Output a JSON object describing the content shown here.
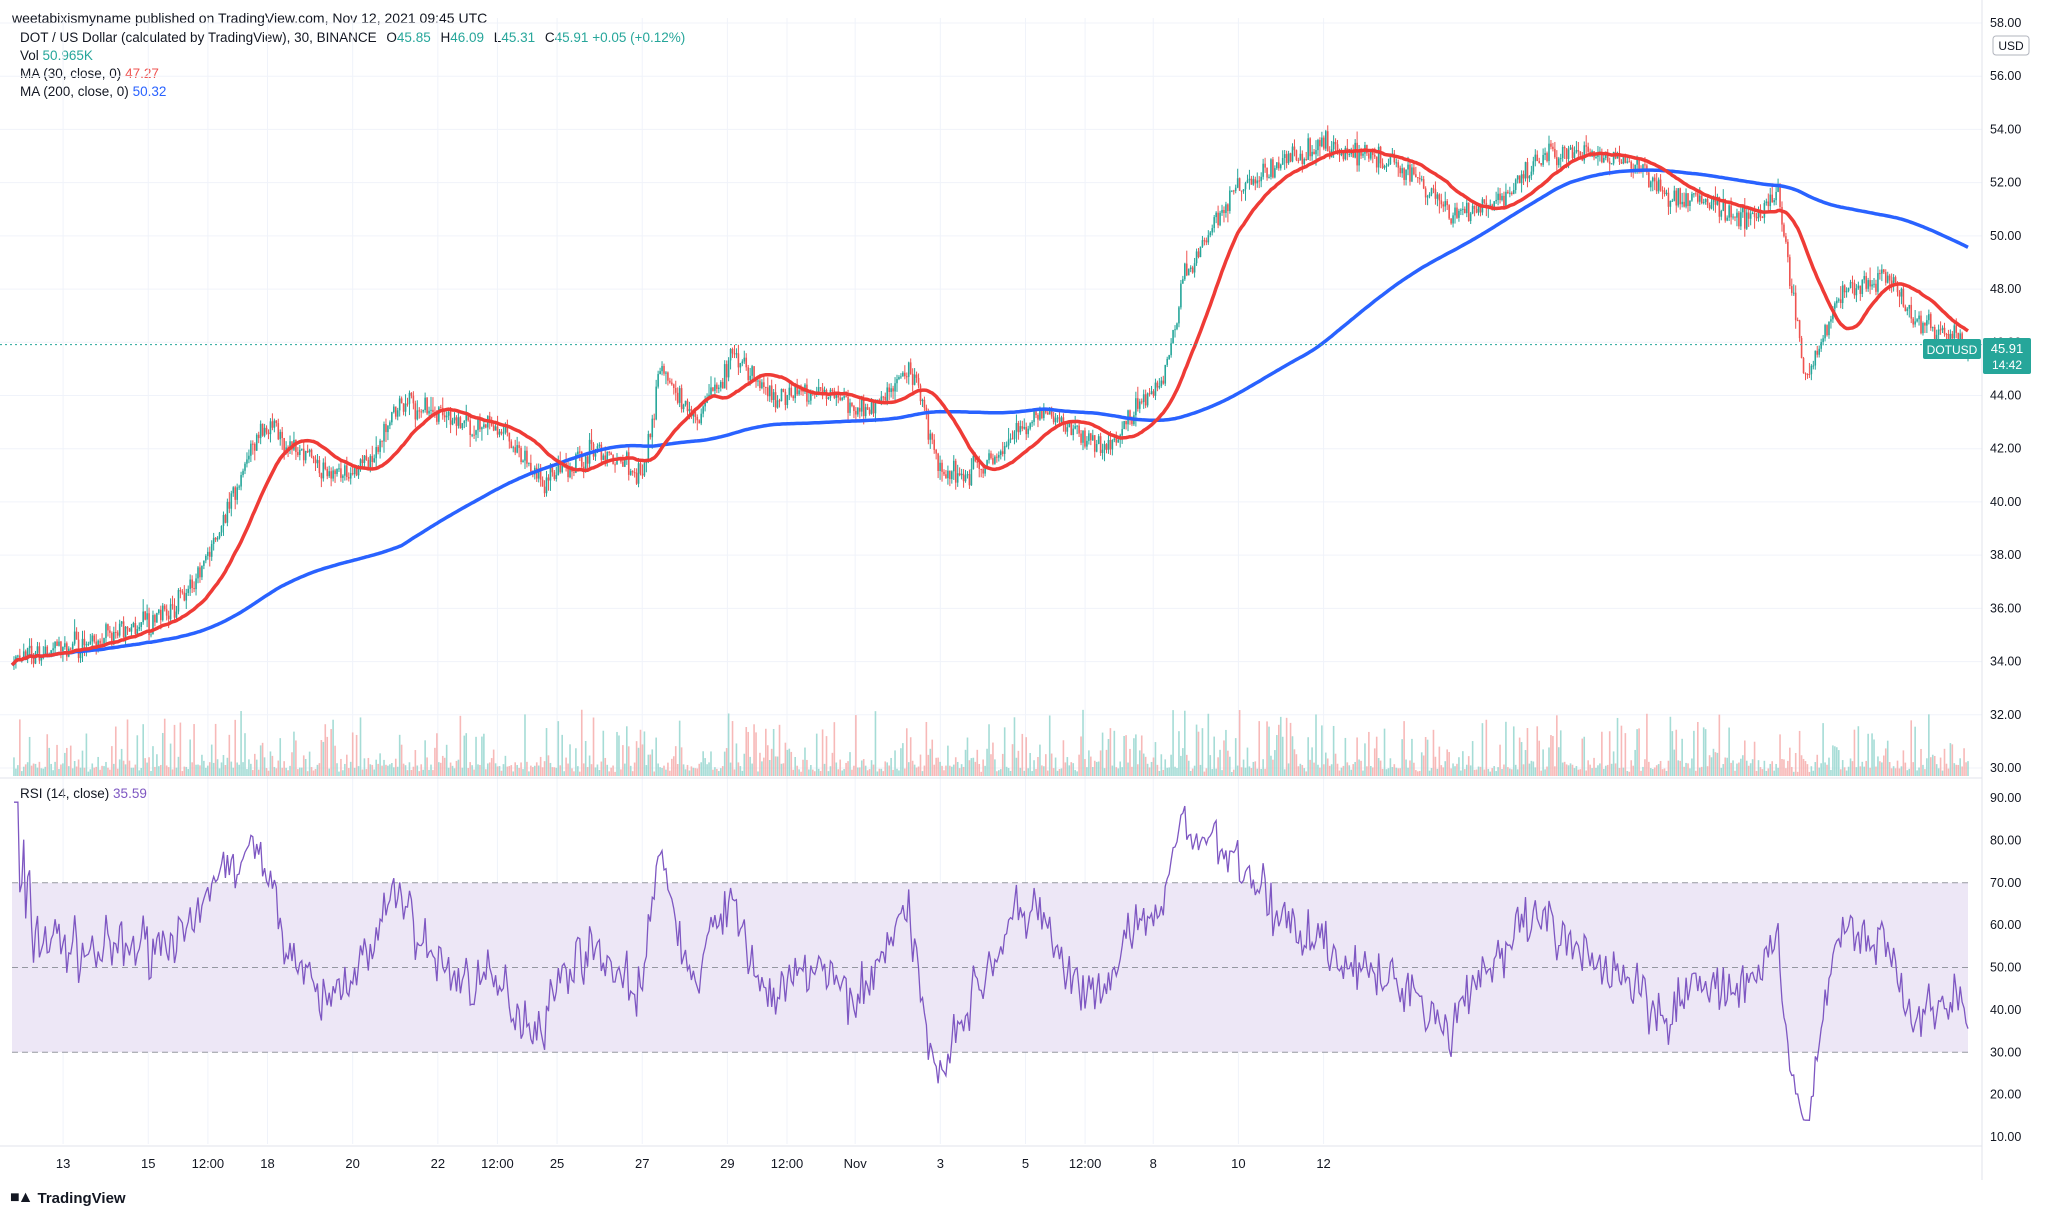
{
  "publisher_line": "weetabixismyname published on TradingView.com, Nov 12, 2021 09:45 UTC",
  "legend": {
    "symbol": "DOT / US Dollar (calculated by TradingView), 30, BINANCE",
    "o_label": "O",
    "o": "45.85",
    "h_label": "H",
    "h": "46.09",
    "l_label": "L",
    "l": "45.31",
    "c_label": "C",
    "c": "45.91",
    "change": "+0.05 (+0.12%)",
    "vol_label": "Vol",
    "vol": "50.965K",
    "ma30_label": "MA (30, close, 0)",
    "ma30": "47.27",
    "ma200_label": "MA (200, close, 0)",
    "ma200": "50.32",
    "rsi_label": "RSI (14, close)",
    "rsi": "35.59"
  },
  "price_tag": {
    "symbol": "DOTUSD",
    "price": "45.91",
    "countdown": "14:42"
  },
  "currency": "USD",
  "logo_text": "TradingView",
  "colors": {
    "up": "#26a69a",
    "down": "#ef5350",
    "ma30": "#ef3b36",
    "ma200": "#2962ff",
    "rsi_line": "#7e57c2",
    "rsi_band": "#ede7f6",
    "grid": "#f0f3fa"
  },
  "chart_data": [
    {
      "type": "line",
      "title": "DOT / US Dollar",
      "x_tick_labels": [
        "13",
        "15",
        "12:00",
        "18",
        "20",
        "22",
        "12:00",
        "25",
        "27",
        "29",
        "12:00",
        "Nov",
        "3",
        "5",
        "12:00",
        "8",
        "10",
        "12"
      ],
      "y_tick_labels": [
        "30.00",
        "32.00",
        "34.00",
        "36.00",
        "38.00",
        "40.00",
        "42.00",
        "44.00",
        "46.00",
        "48.00",
        "50.00",
        "52.00",
        "54.00",
        "56.00",
        "58.00"
      ],
      "ylim": [
        30,
        58
      ],
      "grid": true,
      "price_keypoints": {
        "x_day_index": [
          0,
          0.5,
          1.0,
          1.5,
          2.0,
          2.8,
          3.5,
          4.0,
          4.3,
          5.0,
          5.5,
          5.9,
          6.5,
          7.0,
          7.2,
          7.6,
          8.0,
          8.5,
          8.9,
          9.5,
          9.8,
          10.0,
          10.3,
          10.6,
          11.0,
          11.4,
          11.9,
          12.1,
          12.8,
          13.0,
          13.6,
          14.5,
          15.5,
          16.0,
          16.6,
          17.0,
          17.8,
          18.1,
          18.4,
          18.8,
          19.2,
          19.6,
          19.9,
          20.3,
          20.9,
          21.0,
          21.4,
          21.7
        ],
        "close": [
          34.0,
          34.5,
          34.8,
          35.5,
          36.6,
          43.0,
          41.0,
          41.5,
          43.8,
          43.0,
          42.5,
          40.8,
          42.0,
          41.0,
          45.0,
          43.0,
          45.5,
          43.8,
          44.2,
          43.4,
          44.5,
          44.8,
          41.3,
          41.0,
          42.0,
          43.4,
          42.4,
          41.8,
          44.8,
          48.5,
          51.8,
          53.5,
          52.5,
          50.8,
          51.5,
          53.0,
          53.0,
          52.5,
          51.5,
          51.3,
          50.5,
          51.5,
          44.5,
          48.0,
          48.5,
          47.0,
          46.5,
          45.91
        ]
      },
      "series": [
        {
          "name": "MA (30, close, 0)",
          "last": 47.27
        },
        {
          "name": "MA (200, close, 0)",
          "last": 50.32
        }
      ],
      "last_price": 45.91
    },
    {
      "type": "bar",
      "title": "Vol",
      "last_value": "50.965K"
    },
    {
      "type": "line",
      "title": "RSI (14, close)",
      "y_tick_labels": [
        "10.00",
        "20.00",
        "30.00",
        "40.00",
        "50.00",
        "60.00",
        "70.00",
        "80.00",
        "90.00"
      ],
      "ylim": [
        10,
        90
      ],
      "bands": [
        30,
        50,
        70
      ],
      "last_value": 35.59
    }
  ]
}
